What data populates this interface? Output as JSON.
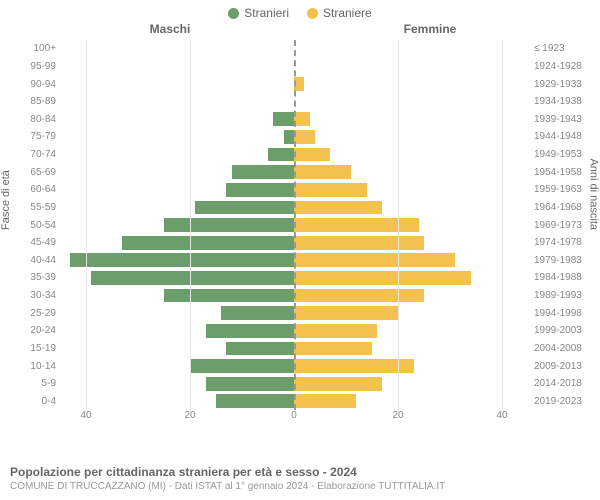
{
  "legend": {
    "male": {
      "label": "Stranieri",
      "color": "#6b9e6b"
    },
    "female": {
      "label": "Straniere",
      "color": "#f2c14e"
    }
  },
  "col_titles": {
    "left": "Maschi",
    "right": "Femmine"
  },
  "axis_labels": {
    "left": "Fasce di età",
    "right": "Anni di nascita"
  },
  "chart": {
    "type": "pyramid",
    "xlim": 45,
    "xticks": [
      40,
      20,
      0,
      20,
      40
    ],
    "grid_color": "#e6e6e6",
    "center_line_color": "#999999",
    "background_color": "#ffffff",
    "bar_fill_ratio": 0.78,
    "label_fontsize": 10,
    "label_color": "#888888",
    "rows": [
      {
        "age": "100+",
        "birth": "≤ 1923",
        "m": 0,
        "f": 0
      },
      {
        "age": "95-99",
        "birth": "1924-1928",
        "m": 0,
        "f": 0
      },
      {
        "age": "90-94",
        "birth": "1929-1933",
        "m": 0,
        "f": 2
      },
      {
        "age": "85-89",
        "birth": "1934-1938",
        "m": 0,
        "f": 0
      },
      {
        "age": "80-84",
        "birth": "1939-1943",
        "m": 4,
        "f": 3
      },
      {
        "age": "75-79",
        "birth": "1944-1948",
        "m": 2,
        "f": 4
      },
      {
        "age": "70-74",
        "birth": "1949-1953",
        "m": 5,
        "f": 7
      },
      {
        "age": "65-69",
        "birth": "1954-1958",
        "m": 12,
        "f": 11
      },
      {
        "age": "60-64",
        "birth": "1959-1963",
        "m": 13,
        "f": 14
      },
      {
        "age": "55-59",
        "birth": "1964-1968",
        "m": 19,
        "f": 17
      },
      {
        "age": "50-54",
        "birth": "1969-1973",
        "m": 25,
        "f": 24
      },
      {
        "age": "45-49",
        "birth": "1974-1978",
        "m": 33,
        "f": 25
      },
      {
        "age": "40-44",
        "birth": "1979-1983",
        "m": 43,
        "f": 31
      },
      {
        "age": "35-39",
        "birth": "1984-1988",
        "m": 39,
        "f": 34
      },
      {
        "age": "30-34",
        "birth": "1989-1993",
        "m": 25,
        "f": 25
      },
      {
        "age": "25-29",
        "birth": "1994-1998",
        "m": 14,
        "f": 20
      },
      {
        "age": "20-24",
        "birth": "1999-2003",
        "m": 17,
        "f": 16
      },
      {
        "age": "15-19",
        "birth": "2004-2008",
        "m": 13,
        "f": 15
      },
      {
        "age": "10-14",
        "birth": "2009-2013",
        "m": 20,
        "f": 23
      },
      {
        "age": "5-9",
        "birth": "2014-2018",
        "m": 17,
        "f": 17
      },
      {
        "age": "0-4",
        "birth": "2019-2023",
        "m": 15,
        "f": 12
      }
    ]
  },
  "footer": {
    "title": "Popolazione per cittadinanza straniera per età e sesso - 2024",
    "subtitle": "COMUNE DI TRUCCAZZANO (MI) - Dati ISTAT al 1° gennaio 2024 - Elaborazione TUTTITALIA.IT"
  }
}
